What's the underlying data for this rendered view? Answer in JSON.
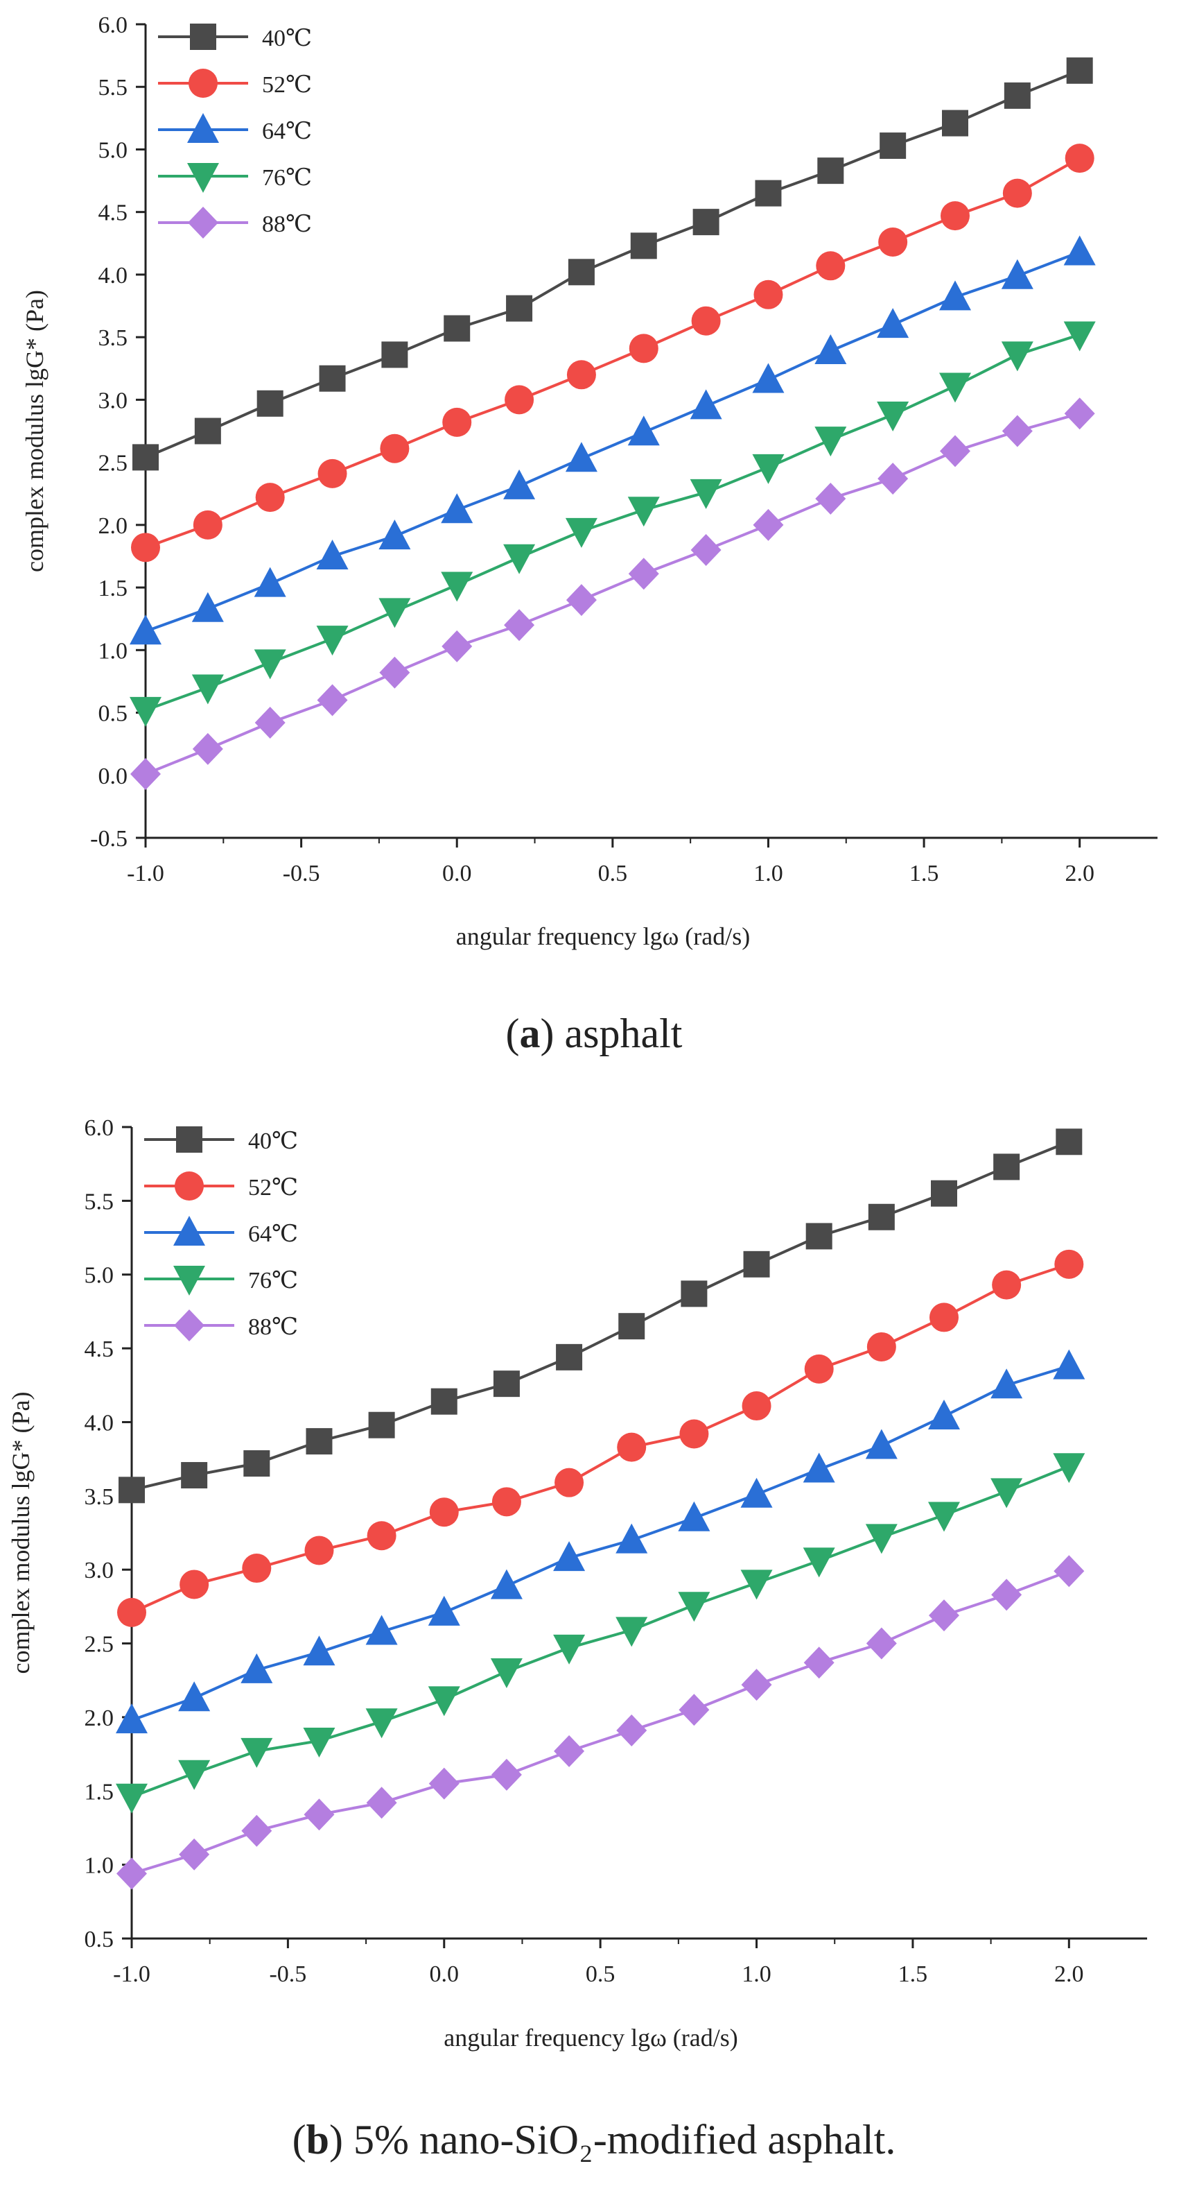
{
  "chart_data": [
    {
      "type": "line",
      "caption": {
        "letter": "a",
        "text": "asphalt"
      },
      "xlabel": "angular frequency lgω (rad/s)",
      "ylabel": "complex modulus lgG* (Pa)",
      "xlim": [
        -1.0,
        2.25
      ],
      "ylim": [
        -0.5,
        6.0
      ],
      "x_ticks": [
        -1.0,
        -0.5,
        0.0,
        0.5,
        1.0,
        1.5,
        2.0
      ],
      "x_tick_labels": [
        "-1.0",
        "-0.5",
        "0.0",
        "0.5",
        "1.0",
        "1.5",
        "2.0"
      ],
      "y_ticks": [
        -0.5,
        0.0,
        0.5,
        1.0,
        1.5,
        2.0,
        2.5,
        3.0,
        3.5,
        4.0,
        4.5,
        5.0,
        5.5,
        6.0
      ],
      "y_tick_labels": [
        "-0.5",
        "0.0",
        "0.5",
        "1.0",
        "1.5",
        "2.0",
        "2.5",
        "3.0",
        "3.5",
        "4.0",
        "4.5",
        "5.0",
        "5.5",
        "6.0"
      ],
      "legend_position": "top-left",
      "x": [
        -1.0,
        -0.8,
        -0.6,
        -0.4,
        -0.2,
        0.0,
        0.2,
        0.4,
        0.6,
        0.8,
        1.0,
        1.2,
        1.4,
        1.6,
        1.8,
        2.0
      ],
      "series": [
        {
          "name": "40℃",
          "color": "#4a4a4a",
          "marker": "square",
          "values": [
            2.54,
            2.75,
            2.97,
            3.17,
            3.36,
            3.57,
            3.73,
            4.02,
            4.23,
            4.42,
            4.65,
            4.83,
            5.03,
            5.21,
            5.43,
            5.63
          ]
        },
        {
          "name": "52℃",
          "color": "#f04b46",
          "marker": "circle",
          "values": [
            1.82,
            2.0,
            2.22,
            2.41,
            2.61,
            2.82,
            3.0,
            3.2,
            3.41,
            3.63,
            3.84,
            4.07,
            4.26,
            4.47,
            4.65,
            4.93
          ]
        },
        {
          "name": "64℃",
          "color": "#2a6fd6",
          "marker": "triangle-up",
          "values": [
            1.15,
            1.33,
            1.53,
            1.75,
            1.91,
            2.12,
            2.31,
            2.53,
            2.74,
            2.95,
            3.16,
            3.39,
            3.6,
            3.82,
            3.99,
            4.18
          ]
        },
        {
          "name": "76℃",
          "color": "#2ea86a",
          "marker": "triangle-down",
          "values": [
            0.52,
            0.7,
            0.9,
            1.09,
            1.31,
            1.52,
            1.74,
            1.95,
            2.12,
            2.26,
            2.46,
            2.68,
            2.88,
            3.11,
            3.36,
            3.52
          ]
        },
        {
          "name": "88℃",
          "color": "#b47ee0",
          "marker": "diamond",
          "values": [
            0.01,
            0.21,
            0.42,
            0.6,
            0.82,
            1.03,
            1.2,
            1.4,
            1.61,
            1.8,
            2.0,
            2.21,
            2.37,
            2.59,
            2.75,
            2.89
          ]
        }
      ]
    },
    {
      "type": "line",
      "caption": {
        "letter": "b",
        "text": "5% nano-SiO₂-modified asphalt."
      },
      "xlabel": "angular frequency lgω (rad/s)",
      "ylabel": "complex modulus lgG* (Pa)",
      "xlim": [
        -1.0,
        2.25
      ],
      "ylim": [
        0.5,
        6.0
      ],
      "x_ticks": [
        -1.0,
        -0.5,
        0.0,
        0.5,
        1.0,
        1.5,
        2.0
      ],
      "x_tick_labels": [
        "-1.0",
        "-0.5",
        "0.0",
        "0.5",
        "1.0",
        "1.5",
        "2.0"
      ],
      "y_ticks": [
        0.5,
        1.0,
        1.5,
        2.0,
        2.5,
        3.0,
        3.5,
        4.0,
        4.5,
        5.0,
        5.5,
        6.0
      ],
      "y_tick_labels": [
        "0.5",
        "1.0",
        "1.5",
        "2.0",
        "2.5",
        "3.0",
        "3.5",
        "4.0",
        "4.5",
        "5.0",
        "5.5",
        "6.0"
      ],
      "legend_position": "top-left",
      "x": [
        -1.0,
        -0.8,
        -0.6,
        -0.4,
        -0.2,
        0.0,
        0.2,
        0.4,
        0.6,
        0.8,
        1.0,
        1.2,
        1.4,
        1.6,
        1.8,
        2.0
      ],
      "series": [
        {
          "name": "40℃",
          "color": "#4a4a4a",
          "marker": "square",
          "values": [
            3.54,
            3.64,
            3.72,
            3.87,
            3.98,
            4.14,
            4.26,
            4.44,
            4.65,
            4.87,
            5.07,
            5.26,
            5.39,
            5.55,
            5.73,
            5.9
          ]
        },
        {
          "name": "52℃",
          "color": "#f04b46",
          "marker": "circle",
          "values": [
            2.71,
            2.9,
            3.01,
            3.13,
            3.23,
            3.39,
            3.46,
            3.59,
            3.83,
            3.92,
            4.11,
            4.36,
            4.51,
            4.71,
            4.93,
            5.07
          ]
        },
        {
          "name": "64℃",
          "color": "#2a6fd6",
          "marker": "triangle-up",
          "values": [
            1.98,
            2.13,
            2.32,
            2.44,
            2.58,
            2.71,
            2.89,
            3.08,
            3.2,
            3.35,
            3.51,
            3.68,
            3.84,
            4.04,
            4.25,
            4.38
          ]
        },
        {
          "name": "76℃",
          "color": "#2ea86a",
          "marker": "triangle-down",
          "values": [
            1.46,
            1.62,
            1.77,
            1.84,
            1.97,
            2.12,
            2.31,
            2.47,
            2.59,
            2.76,
            2.91,
            3.06,
            3.22,
            3.37,
            3.53,
            3.7
          ]
        },
        {
          "name": "88℃",
          "color": "#b47ee0",
          "marker": "diamond",
          "values": [
            0.94,
            1.07,
            1.23,
            1.34,
            1.42,
            1.55,
            1.61,
            1.77,
            1.91,
            2.05,
            2.22,
            2.37,
            2.5,
            2.69,
            2.83,
            2.99
          ]
        }
      ]
    }
  ]
}
